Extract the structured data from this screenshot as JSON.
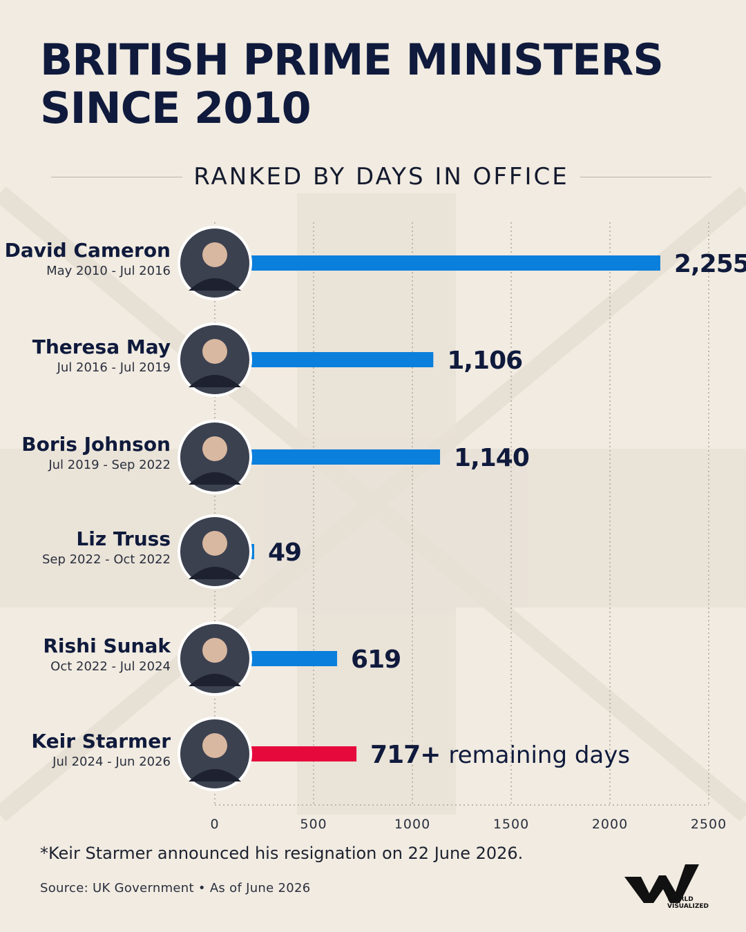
{
  "title_lines": [
    "BRITISH PRIME MINISTERS",
    "SINCE 2010"
  ],
  "subtitle": "RANKED BY DAYS IN OFFICE",
  "footnote": "*Keir Starmer announced his resignation on 22 June 2026.",
  "source": "Source: UK Government • As of June 2026",
  "logo": {
    "icon": "world-visualized-logo",
    "text_lines": [
      "WORLD",
      "VISUALIZED"
    ]
  },
  "colors": {
    "background": "#f1ebe1",
    "navy": "#0f1a3c",
    "bar": "#0a7fdc",
    "highlight": "#e60a3c"
  },
  "chart_data": {
    "type": "bar",
    "orientation": "horizontal",
    "title": "BRITISH PRIME MINISTERS SINCE 2010",
    "subtitle": "RANKED BY DAYS IN OFFICE",
    "xlim": [
      0,
      2500
    ],
    "x_ticks": [
      "0",
      "500",
      "1000",
      "1500",
      "2000",
      "2500"
    ],
    "grid": true,
    "categories": [
      "David Cameron",
      "Theresa May",
      "Boris Johnson",
      "Liz Truss",
      "Rishi Sunak",
      "Keir Starmer"
    ],
    "values": [
      2255,
      1106,
      1140,
      49,
      619,
      717
    ],
    "rows": [
      {
        "name": "David Cameron",
        "term": "May 2010 - Jul 2016",
        "days": 2255,
        "value_label": "2,255",
        "extra": "",
        "color": "#0a7fdc",
        "portrait": "portrait-icon"
      },
      {
        "name": "Theresa May",
        "term": "Jul 2016 - Jul 2019",
        "days": 1106,
        "value_label": "1,106",
        "extra": "",
        "color": "#0a7fdc",
        "portrait": "portrait-icon"
      },
      {
        "name": "Boris Johnson",
        "term": "Jul 2019 - Sep 2022",
        "days": 1140,
        "value_label": "1,140",
        "extra": "",
        "color": "#0a7fdc",
        "portrait": "portrait-icon"
      },
      {
        "name": "Liz Truss",
        "term": "Sep 2022 - Oct 2022",
        "days": 49,
        "value_label": "49",
        "extra": "",
        "color": "#0a7fdc",
        "portrait": "portrait-icon"
      },
      {
        "name": "Rishi Sunak",
        "term": "Oct 2022 - Jul 2024",
        "days": 619,
        "value_label": "619",
        "extra": "",
        "color": "#0a7fdc",
        "portrait": "portrait-icon"
      },
      {
        "name": "Keir Starmer",
        "term": "Jul 2024 -  Jun 2026",
        "days": 717,
        "value_label": "717+",
        "extra": "remaining days",
        "color": "#e60a3c",
        "portrait": "portrait-icon"
      }
    ]
  }
}
